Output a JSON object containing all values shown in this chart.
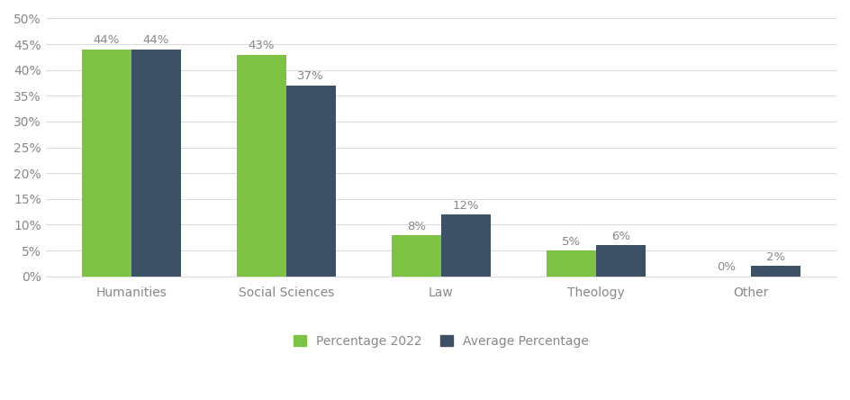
{
  "categories": [
    "Humanities",
    "Social Sciences",
    "Law",
    "Theology",
    "Other"
  ],
  "values_2022": [
    44,
    43,
    8,
    5,
    0
  ],
  "values_avg": [
    44,
    37,
    12,
    6,
    2
  ],
  "color_2022": "#7DC242",
  "color_avg": "#3D5166",
  "bar_width": 0.32,
  "ylim": [
    0,
    50
  ],
  "yticks": [
    0,
    5,
    10,
    15,
    20,
    25,
    30,
    35,
    40,
    45,
    50
  ],
  "ytick_labels": [
    "0%",
    "5%",
    "10%",
    "15%",
    "20%",
    "25%",
    "30%",
    "35%",
    "40%",
    "45%",
    "50%"
  ],
  "legend_label_2022": "Percentage 2022",
  "legend_label_avg": "Average Percentage",
  "background_color": "#ffffff",
  "label_fontsize": 9.5,
  "tick_fontsize": 10,
  "legend_fontsize": 10,
  "tick_color": "#888888",
  "grid_color": "#dddddd"
}
